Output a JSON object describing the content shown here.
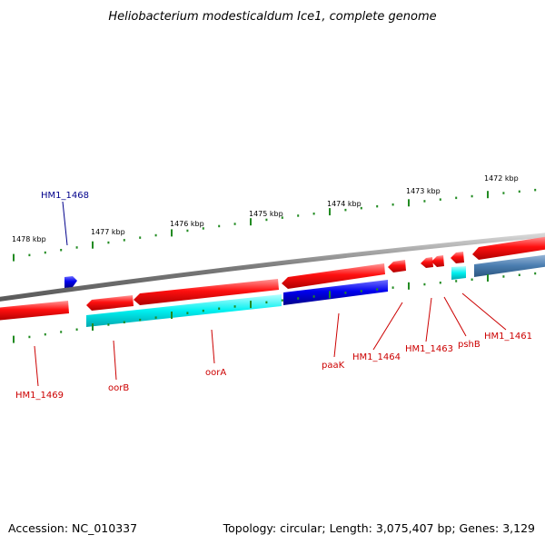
{
  "title": "Heliobacterium modesticaldum Ice1, complete genome",
  "footer": {
    "accession": "Accession: NC_010337",
    "summary": "Topology: circular; Length: 3,075,407 bp; Genes: 3,129"
  },
  "colors": {
    "forward_gene": "#ff0000",
    "reverse_gene": "#0000ff",
    "forward_feature": "#00ffff",
    "reverse_feature": "#4682b4",
    "backbone": "#808080",
    "tick": "#228b22",
    "label_red": "#cc0000",
    "label_blue": "#00008b"
  },
  "scale_ticks": [
    {
      "label": "1478 kbp"
    },
    {
      "label": "1477 kbp"
    },
    {
      "label": "1476 kbp"
    },
    {
      "label": "1475 kbp"
    },
    {
      "label": "1474 kbp"
    },
    {
      "label": "1473 kbp"
    },
    {
      "label": "1472 kbp"
    }
  ],
  "gene_labels": [
    {
      "name": "HM1_1468",
      "color": "blue"
    },
    {
      "name": "HM1_1469",
      "color": "red"
    },
    {
      "name": "oorB",
      "color": "red"
    },
    {
      "name": "oorA",
      "color": "red"
    },
    {
      "name": "paaK",
      "color": "red"
    },
    {
      "name": "HM1_1464",
      "color": "red"
    },
    {
      "name": "HM1_1463",
      "color": "red"
    },
    {
      "name": "pshB",
      "color": "red"
    },
    {
      "name": "HM1_1461",
      "color": "red"
    }
  ]
}
